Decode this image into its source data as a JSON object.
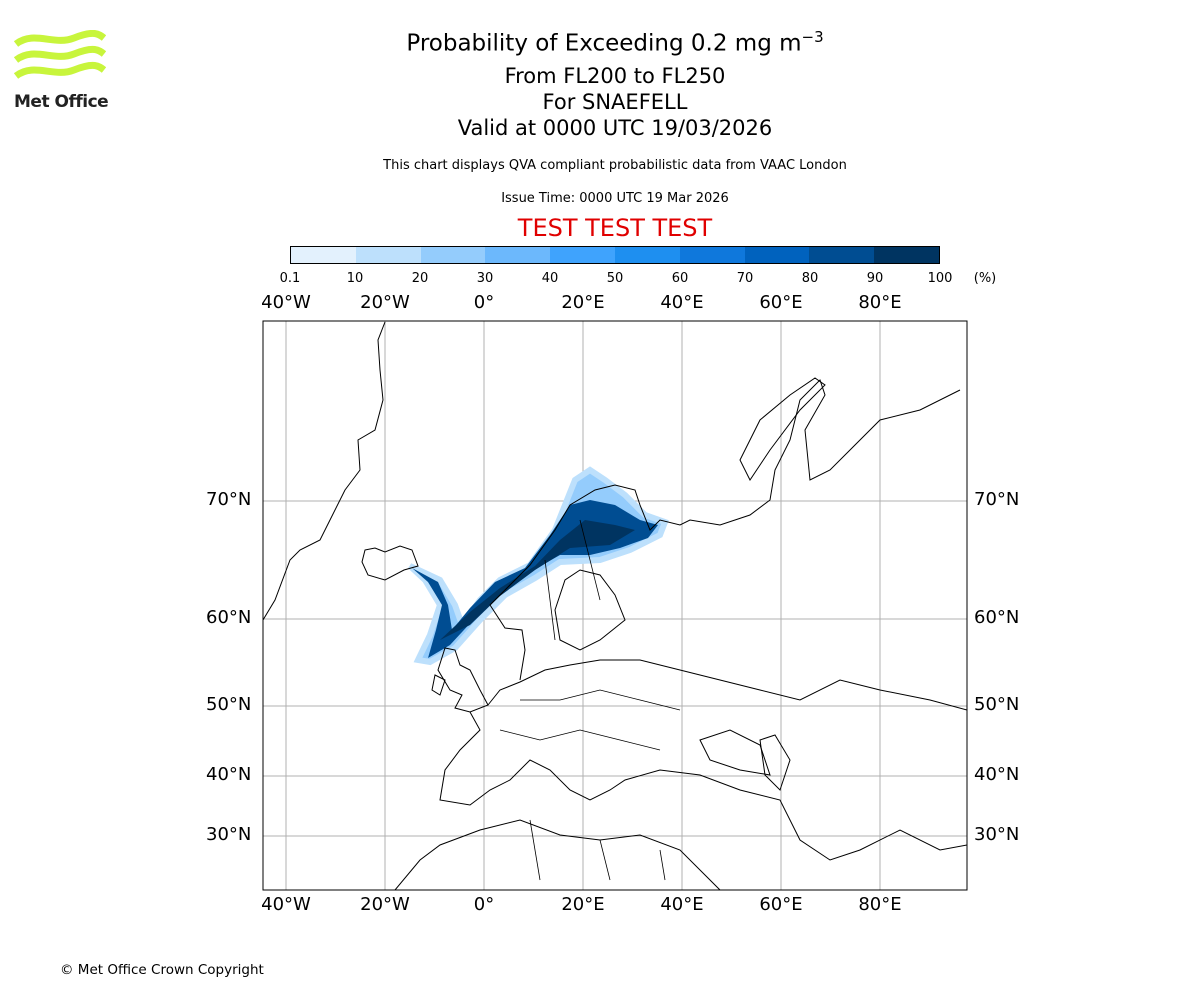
{
  "logo": {
    "text": "Met Office",
    "color": "#c8f53c"
  },
  "header": {
    "title": "Probability of Exceeding 0.2 mg m",
    "title_sup": "−3",
    "level": "From FL200 to FL250",
    "volcano": "For SNAEFELL",
    "valid": "Valid at 0000 UTC 19/03/2026",
    "description": "This chart displays QVA compliant probabilistic data from VAAC London",
    "issue_time": "Issue Time: 0000 UTC 19 Mar 2026",
    "test_banner": "TEST TEST TEST"
  },
  "colorbar": {
    "ticks": [
      "0.1",
      "10",
      "20",
      "30",
      "40",
      "50",
      "60",
      "70",
      "80",
      "90",
      "100"
    ],
    "unit": "(%)",
    "colors": [
      "#e3f1fd",
      "#bde0fc",
      "#94ccfc",
      "#6cb8fc",
      "#3fa3fd",
      "#1e8ff0",
      "#0f78dc",
      "#0062be",
      "#004d92",
      "#003461"
    ]
  },
  "map": {
    "lon_labels": [
      "40°W",
      "20°W",
      "0°",
      "20°E",
      "40°E",
      "60°E",
      "80°E"
    ],
    "lat_labels": [
      "70°N",
      "60°N",
      "50°N",
      "40°N",
      "30°N"
    ]
  },
  "footer": {
    "copyright": "© Met Office Crown Copyright"
  }
}
